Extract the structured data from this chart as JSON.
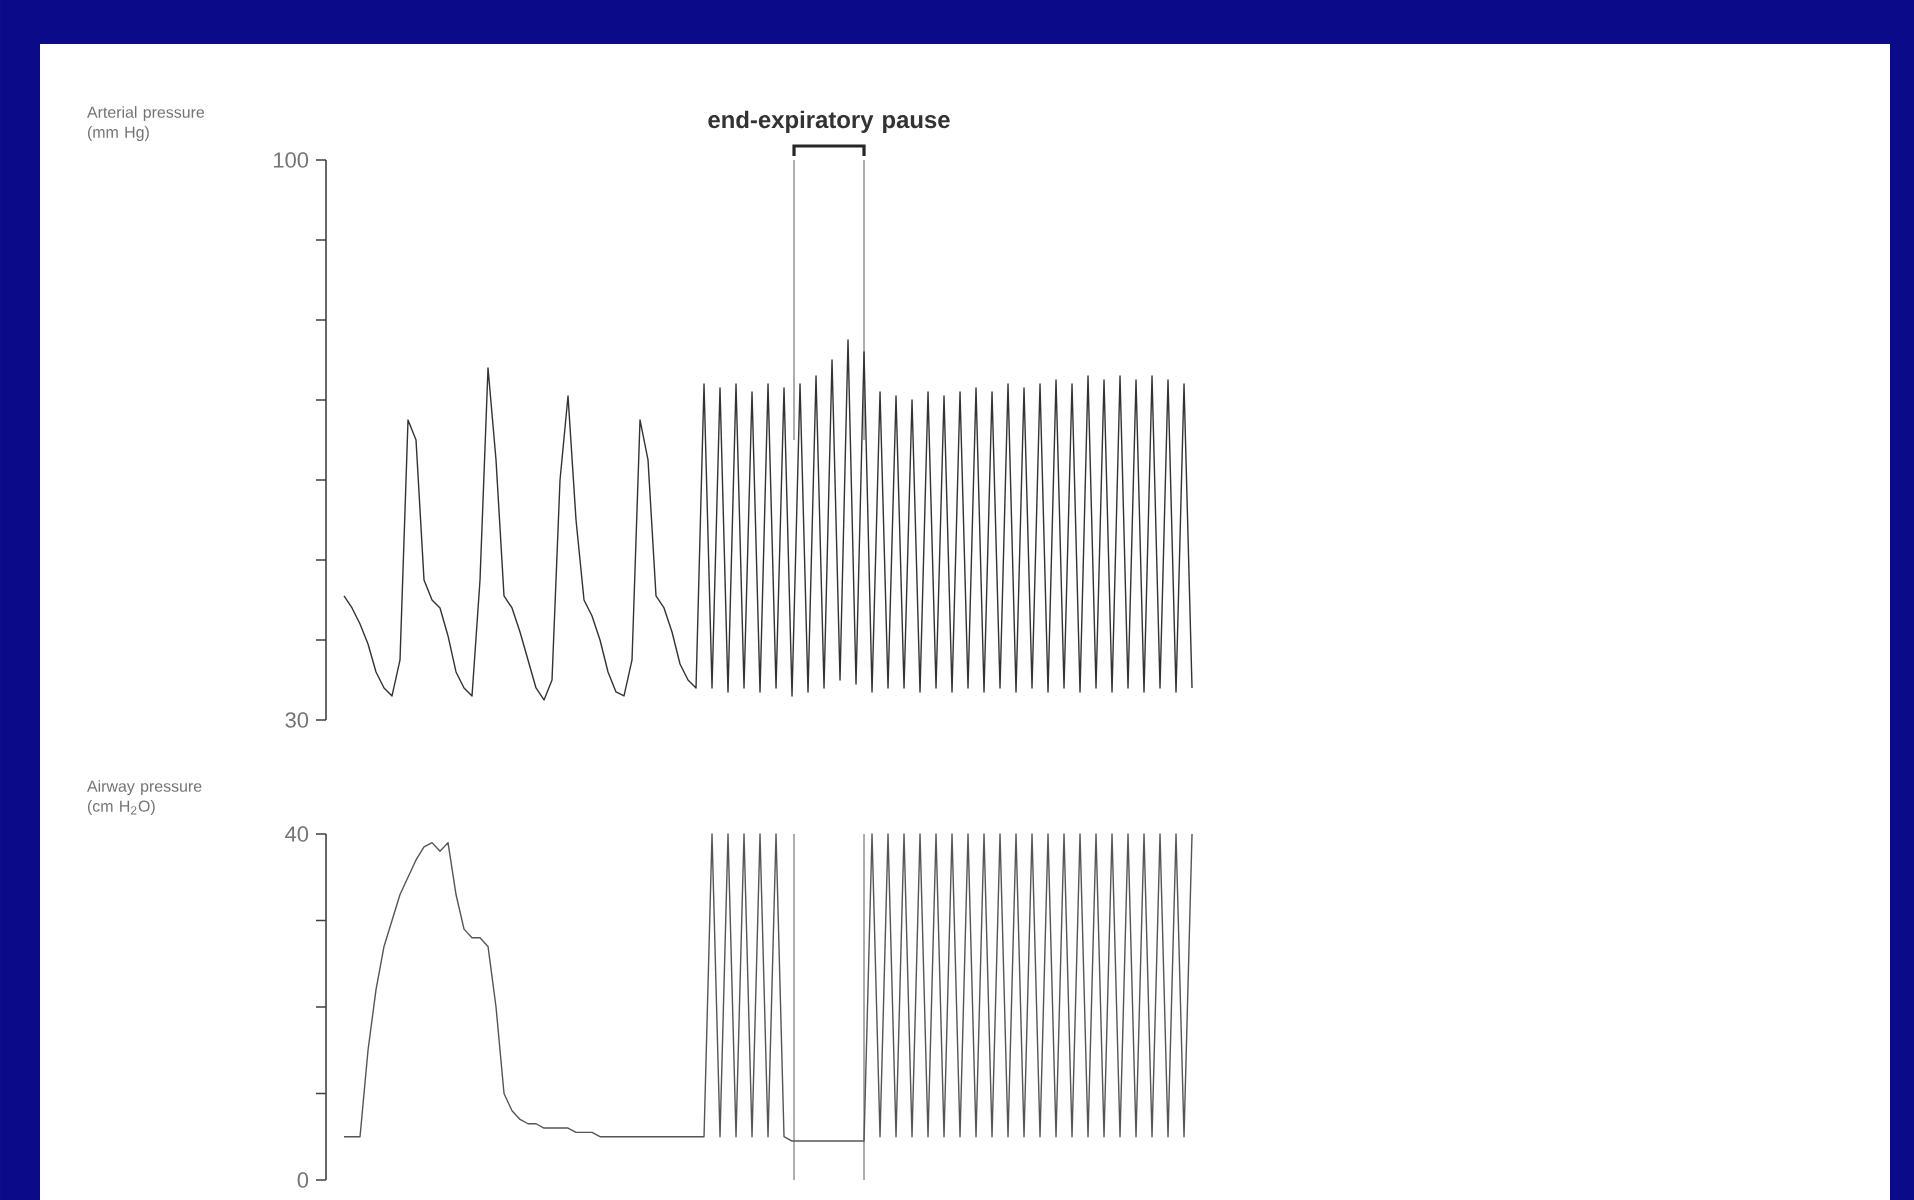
{
  "chart_data": [
    {
      "type": "line",
      "ylabel": "Arterial pressure (mm Hg)",
      "annotations": [
        "end-expiratory pause"
      ],
      "ylim": [
        30,
        100
      ],
      "categories": [
        null,
        null,
        null,
        null,
        null,
        null,
        null,
        null,
        null,
        null,
        null,
        null,
        null,
        null,
        null,
        null,
        null,
        null,
        null,
        null,
        null,
        null,
        null,
        null,
        null,
        null,
        null,
        null,
        null,
        null,
        null,
        null,
        null,
        null,
        null,
        null,
        null,
        null,
        null,
        null,
        null,
        null,
        null,
        null,
        null,
        null,
        null,
        null,
        null,
        null,
        null,
        null,
        null,
        null,
        null,
        null,
        null,
        null,
        null,
        null,
        null,
        null,
        null,
        null,
        null,
        null,
        null,
        null,
        null,
        null,
        null,
        null,
        null,
        null,
        null,
        null,
        null,
        null,
        null,
        null,
        null,
        null,
        null,
        null,
        null,
        null,
        null,
        null,
        null,
        null,
        null,
        null,
        null,
        null,
        null,
        null,
        null,
        null,
        null,
        null,
        null,
        null,
        null,
        null,
        null,
        null,
        null
      ],
      "yticks": [
        30,
        {
          "value": 40,
          "label": null
        },
        {
          "value": 50,
          "label": null
        },
        {
          "value": 60,
          "label": null
        },
        {
          "value": 70,
          "label": null
        },
        {
          "value": 80,
          "label": null
        },
        {
          "value": 90,
          "label": null
        },
        100
      ],
      "tick_labels": "y",
      "grid": false,
      "marker": "none",
      "line_style": "solid",
      "series": [
        {
          "color": "#333333",
          "values": [
            45.5,
            44,
            42,
            39.5,
            36,
            34,
            33,
            37.5,
            67.5,
            65,
            47.5,
            45,
            44,
            40.5,
            36,
            34,
            33,
            47.5,
            74,
            62.5,
            45.5,
            44,
            41,
            37.5,
            34,
            32.5,
            35,
            60,
            70.5,
            55,
            45,
            43,
            40,
            36,
            33.5,
            33,
            37.5,
            67.5,
            62.5,
            45.5,
            44,
            41,
            37,
            35,
            34,
            72,
            34,
            71.5,
            33.5,
            72,
            34,
            71,
            33.5,
            72,
            34,
            71.5,
            33,
            72,
            33.5,
            73,
            34,
            75,
            35,
            77.5,
            34.5,
            76,
            33.5,
            71,
            34,
            70.5,
            34,
            70,
            33.5,
            71,
            34,
            70.5,
            33.5,
            71,
            34,
            71.5,
            33.5,
            71,
            34,
            72,
            33.5,
            71.5,
            34,
            72,
            33.5,
            72.5,
            34,
            72,
            33.5,
            73,
            34,
            72.5,
            33.5,
            73,
            34,
            72.5,
            33.5,
            73,
            34,
            72.5,
            33.5,
            72,
            34
          ]
        }
      ]
    },
    {
      "type": "line",
      "ylabel": "Airway pressure (cm H$_{2}$O)",
      "ylim": [
        0,
        40
      ],
      "categories": [
        null,
        null,
        null,
        null,
        null,
        null,
        null,
        null,
        null,
        null,
        null,
        null,
        null,
        null,
        null,
        null,
        null,
        null,
        null,
        null,
        null,
        null,
        null,
        null,
        null,
        null,
        null,
        null,
        null,
        null,
        null,
        null,
        null,
        null,
        null,
        null,
        null,
        null,
        null,
        null,
        null,
        null,
        null,
        null,
        null,
        null,
        null,
        null,
        null,
        null,
        null,
        null,
        null,
        null,
        null,
        null,
        null,
        null,
        null,
        null,
        null,
        null,
        null,
        null,
        null,
        null,
        null,
        null,
        null,
        null,
        null,
        null,
        null,
        null,
        null,
        null,
        null,
        null,
        null,
        null,
        null,
        null,
        null,
        null,
        null,
        null,
        null,
        null,
        null,
        null,
        null,
        null,
        null,
        null,
        null,
        null,
        null,
        null,
        null,
        null,
        null,
        null,
        null,
        null,
        null,
        null,
        null
      ],
      "yticks": [
        0,
        {
          "value": 10,
          "label": null
        },
        {
          "value": 20,
          "label": null
        },
        {
          "value": 30,
          "label": null
        },
        40
      ],
      "tick_labels": "y",
      "grid": false,
      "marker": "none",
      "line_style": "solid",
      "series": [
        {
          "color": "#555555",
          "values": [
            5,
            5,
            5,
            15,
            22,
            27,
            30,
            33,
            35,
            37,
            38.5,
            39,
            38,
            39,
            33,
            29,
            28,
            28,
            27,
            20,
            10,
            8,
            7,
            6.5,
            6.5,
            6,
            6,
            6,
            6,
            5.5,
            5.5,
            5.5,
            5,
            5,
            5,
            5,
            5,
            5,
            5,
            5,
            5,
            5,
            5,
            5,
            5,
            5,
            40,
            5,
            40,
            5,
            40,
            5,
            40,
            5,
            40,
            5,
            4.5,
            4.5,
            4.5,
            4.5,
            4.5,
            4.5,
            4.5,
            4.5,
            4.5,
            4.5,
            40,
            5,
            40,
            5,
            40,
            5,
            40,
            5,
            40,
            5,
            40,
            5,
            40,
            5,
            40,
            5,
            40,
            5,
            40,
            5,
            40,
            5,
            40,
            5,
            40,
            5,
            40,
            5,
            40,
            5,
            40,
            5,
            40,
            5,
            40,
            5,
            40,
            5,
            40,
            5,
            40
          ]
        }
      ]
    }
  ]
}
